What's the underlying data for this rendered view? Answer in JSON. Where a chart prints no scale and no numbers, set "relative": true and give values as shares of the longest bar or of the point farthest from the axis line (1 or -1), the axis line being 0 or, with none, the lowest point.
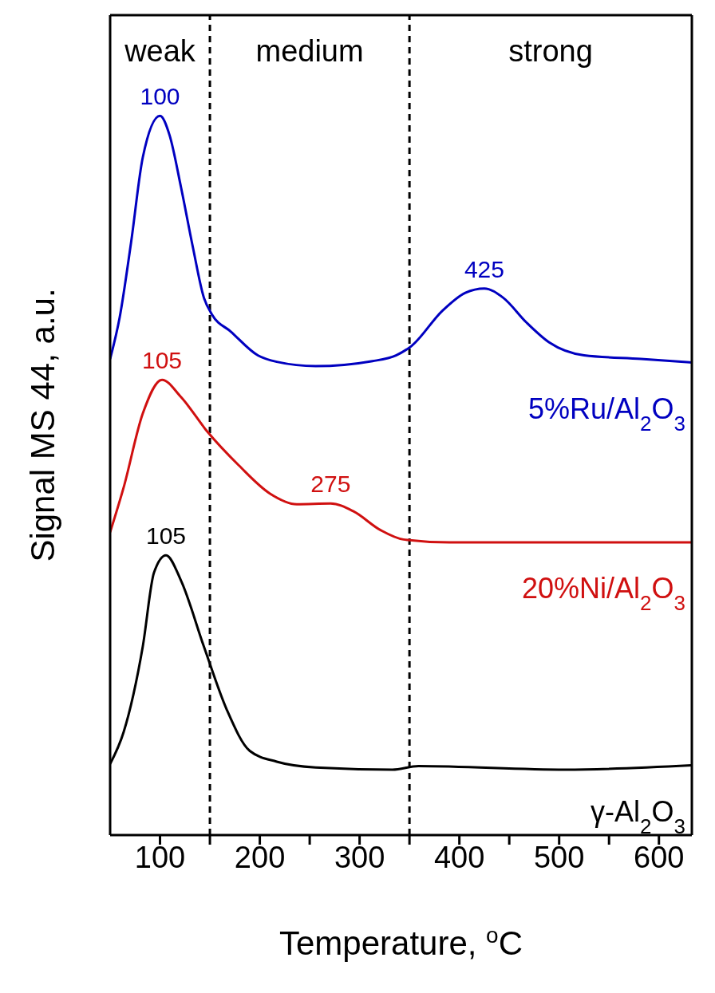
{
  "chart_data": {
    "type": "line",
    "relative": true,
    "xlabel": "Temperature, $^{o}$C",
    "ylabel": "Signal MS 44, a.u.",
    "xlim": [
      50,
      633
    ],
    "xticks": [
      100,
      {
        "value": 150,
        "label": null
      },
      200,
      {
        "value": 250,
        "label": null
      },
      300,
      {
        "value": 350,
        "label": null
      },
      400,
      {
        "value": 450,
        "label": null
      },
      500,
      {
        "value": 550,
        "label": null
      },
      600
    ],
    "marker": "none",
    "line_style": "solid",
    "ref_lines": [
      {
        "axis": "x",
        "value": 150,
        "line_style": "dashed",
        "color": "#000000"
      },
      {
        "axis": "x",
        "value": 350,
        "line_style": "dashed",
        "color": "#000000"
      }
    ],
    "annotations": [
      "weak",
      "medium",
      "strong",
      {
        "text": "100",
        "x": 100,
        "y": 1
      },
      {
        "text": "425",
        "x": 425,
        "y": 0.76
      },
      {
        "text": "105",
        "x": 102,
        "y": 0.633
      },
      {
        "text": "275",
        "x": 271,
        "y": 0.461
      },
      {
        "text": "105",
        "x": 106,
        "y": 0.389
      }
    ],
    "series": [
      {
        "name": "5%Ru/Al$_{2}$O$_{3}$",
        "color": "#0000c0",
        "x": [
          50,
          59.6,
          71,
          82.7,
          100,
          109.6,
          121,
          132.7,
          144,
          152,
          171,
          198,
          217,
          256,
          313,
          336.5,
          352,
          383,
          406,
          425,
          444,
          467,
          490,
          525,
          582,
          633
        ],
        "values": [
          0.662,
          0.72,
          0.824,
          0.942,
          1,
          0.973,
          0.901,
          0.819,
          0.747,
          0.724,
          0.7,
          0.667,
          0.658,
          0.652,
          0.659,
          0.667,
          0.68,
          0.729,
          0.754,
          0.76,
          0.747,
          0.713,
          0.685,
          0.667,
          0.662,
          0.657
        ]
      },
      {
        "name": "20%Ni/Al$_{2}$O$_{3}$",
        "color": "#d01010",
        "x": [
          50,
          63.5,
          82.7,
          102,
          121,
          148,
          179,
          210,
          237,
          271,
          294,
          321,
          344,
          390,
          506,
          633
        ],
        "values": [
          0.421,
          0.483,
          0.586,
          0.633,
          0.609,
          0.56,
          0.514,
          0.475,
          0.46,
          0.461,
          0.45,
          0.424,
          0.411,
          0.407,
          0.407,
          0.407
        ]
      },
      {
        "name": "γ-Al$_{2}$O$_{3}$",
        "color": "#000000",
        "x": [
          50,
          63.5,
          82.7,
          94,
          106,
          121,
          144,
          167,
          190,
          217,
          256,
          333,
          359,
          506,
          633
        ],
        "values": [
          0.099,
          0.143,
          0.262,
          0.365,
          0.389,
          0.354,
          0.262,
          0.174,
          0.117,
          0.102,
          0.094,
          0.091,
          0.096,
          0.091,
          0.097
        ]
      }
    ]
  }
}
